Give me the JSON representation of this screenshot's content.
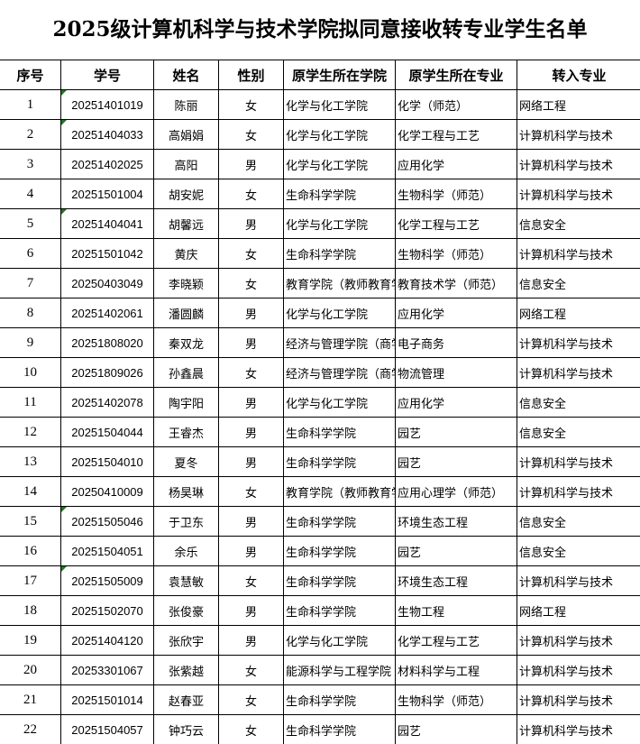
{
  "title": "2025级计算机科学与技术学院拟同意接收转专业学生名单",
  "headers": [
    "序号",
    "学号",
    "姓名",
    "性别",
    "原学生所在学院",
    "原学生所在专业",
    "转入专业"
  ],
  "indicator_color": "#1e7a1e",
  "rows": [
    {
      "no": "1",
      "id": "20251401019",
      "name": "陈丽",
      "sex": "女",
      "college": "化学与化工学院",
      "major": "化学（师范）",
      "target": "网络工程",
      "marked": true
    },
    {
      "no": "2",
      "id": "20251404033",
      "name": "高娟娟",
      "sex": "女",
      "college": "化学与化工学院",
      "major": "化学工程与工艺",
      "target": "计算机科学与技术",
      "marked": true
    },
    {
      "no": "3",
      "id": "20251402025",
      "name": "高阳",
      "sex": "男",
      "college": "化学与化工学院",
      "major": "应用化学",
      "target": "计算机科学与技术",
      "marked": false
    },
    {
      "no": "4",
      "id": "20251501004",
      "name": "胡安妮",
      "sex": "女",
      "college": "生命科学学院",
      "major": "生物科学（师范）",
      "target": "计算机科学与技术",
      "marked": false
    },
    {
      "no": "5",
      "id": "20251404041",
      "name": "胡馨远",
      "sex": "男",
      "college": "化学与化工学院",
      "major": "化学工程与工艺",
      "target": "信息安全",
      "marked": true
    },
    {
      "no": "6",
      "id": "20251501042",
      "name": "黄庆",
      "sex": "女",
      "college": "生命科学学院",
      "major": "生物科学（师范）",
      "target": "计算机科学与技术",
      "marked": false
    },
    {
      "no": "7",
      "id": "20250403049",
      "name": "李晓颖",
      "sex": "女",
      "college": "教育学院（教师教育学",
      "major": "教育技术学（师范）",
      "target": "信息安全",
      "marked": false
    },
    {
      "no": "8",
      "id": "20251402061",
      "name": "潘圆麟",
      "sex": "男",
      "college": "化学与化工学院",
      "major": "应用化学",
      "target": "网络工程",
      "marked": false
    },
    {
      "no": "9",
      "id": "20251808020",
      "name": "秦双龙",
      "sex": "男",
      "college": "经济与管理学院（商学",
      "major": "电子商务",
      "target": "计算机科学与技术",
      "marked": false
    },
    {
      "no": "10",
      "id": "20251809026",
      "name": "孙鑫晨",
      "sex": "女",
      "college": "经济与管理学院（商学",
      "major": "物流管理",
      "target": "计算机科学与技术",
      "marked": false
    },
    {
      "no": "11",
      "id": "20251402078",
      "name": "陶宇阳",
      "sex": "男",
      "college": "化学与化工学院",
      "major": "应用化学",
      "target": "信息安全",
      "marked": false
    },
    {
      "no": "12",
      "id": "20251504044",
      "name": "王睿杰",
      "sex": "男",
      "college": "生命科学学院",
      "major": "园艺",
      "target": "信息安全",
      "marked": false
    },
    {
      "no": "13",
      "id": "20251504010",
      "name": "夏冬",
      "sex": "男",
      "college": "生命科学学院",
      "major": "园艺",
      "target": "计算机科学与技术",
      "marked": false
    },
    {
      "no": "14",
      "id": "20250410009",
      "name": "杨昊琳",
      "sex": "女",
      "college": "教育学院（教师教育学",
      "major": "应用心理学（师范）",
      "target": "计算机科学与技术",
      "marked": false
    },
    {
      "no": "15",
      "id": "20251505046",
      "name": "于卫东",
      "sex": "男",
      "college": "生命科学学院",
      "major": "环境生态工程",
      "target": "信息安全",
      "marked": true
    },
    {
      "no": "16",
      "id": "20251504051",
      "name": "余乐",
      "sex": "男",
      "college": "生命科学学院",
      "major": "园艺",
      "target": "信息安全",
      "marked": false
    },
    {
      "no": "17",
      "id": "20251505009",
      "name": "袁慧敏",
      "sex": "女",
      "college": "生命科学学院",
      "major": "环境生态工程",
      "target": "计算机科学与技术",
      "marked": true
    },
    {
      "no": "18",
      "id": "20251502070",
      "name": "张俊豪",
      "sex": "男",
      "college": "生命科学学院",
      "major": "生物工程",
      "target": "网络工程",
      "marked": false
    },
    {
      "no": "19",
      "id": "20251404120",
      "name": "张欣宇",
      "sex": "男",
      "college": "化学与化工学院",
      "major": "化学工程与工艺",
      "target": "计算机科学与技术",
      "marked": false
    },
    {
      "no": "20",
      "id": "20253301067",
      "name": "张紫越",
      "sex": "女",
      "college": "能源科学与工程学院",
      "major": "材料科学与工程",
      "target": "计算机科学与技术",
      "marked": false
    },
    {
      "no": "21",
      "id": "20251501014",
      "name": "赵春亚",
      "sex": "女",
      "college": "生命科学学院",
      "major": "生物科学（师范）",
      "target": "计算机科学与技术",
      "marked": false
    },
    {
      "no": "22",
      "id": "20251504057",
      "name": "钟巧云",
      "sex": "女",
      "college": "生命科学学院",
      "major": "园艺",
      "target": "计算机科学与技术",
      "marked": false
    }
  ]
}
